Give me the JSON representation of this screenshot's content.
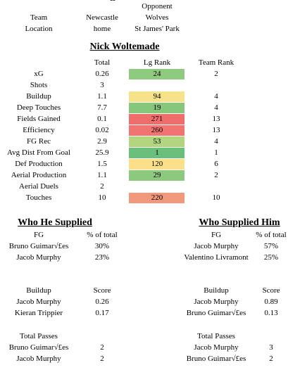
{
  "header": {
    "dash": "--",
    "opponent_label": "Opponent",
    "rows": [
      {
        "label": "Team",
        "home": "Newcastle",
        "away": "Wolves"
      },
      {
        "label": "Location",
        "home": "home",
        "away": "St James' Park"
      }
    ]
  },
  "player": {
    "name": "Nick Woltemade",
    "columns": [
      "Total",
      "Lg Rank",
      "Team Rank"
    ],
    "rows": [
      {
        "metric": "xG",
        "total": "0.26",
        "lg_rank": {
          "value": "24",
          "color": "#8dca7e"
        },
        "team_rank": "2"
      },
      {
        "metric": "Shots",
        "total": "3"
      },
      {
        "metric": "Buildup",
        "total": "1.1",
        "lg_rank": {
          "value": "94",
          "color": "#f6e389"
        },
        "team_rank": "4"
      },
      {
        "metric": "Deep Touches",
        "total": "7.7",
        "lg_rank": {
          "value": "19",
          "color": "#86c77c"
        },
        "team_rank": "4"
      },
      {
        "metric": "Fields Gained",
        "total": "0.1",
        "lg_rank": {
          "value": "271",
          "color": "#ef6e6b"
        },
        "team_rank": "13"
      },
      {
        "metric": "Efficiency",
        "total": "0.02",
        "lg_rank": {
          "value": "260",
          "color": "#f0746f"
        },
        "team_rank": "13"
      },
      {
        "metric": "FG Rec",
        "total": "2.9",
        "lg_rank": {
          "value": "53",
          "color": "#b3d57f"
        },
        "team_rank": "4"
      },
      {
        "metric": "Avg Dist From Goal",
        "total": "25.9",
        "lg_rank": {
          "value": "1",
          "color": "#69bf7b"
        },
        "team_rank": "1"
      },
      {
        "metric": "Def Production",
        "total": "1.5",
        "lg_rank": {
          "value": "120",
          "color": "#fcdf89"
        },
        "team_rank": "6"
      },
      {
        "metric": "Aerial Production",
        "total": "1.1",
        "lg_rank": {
          "value": "29",
          "color": "#8cc97e"
        },
        "team_rank": "2"
      },
      {
        "metric": "Aerial Duels",
        "total": "2"
      },
      {
        "metric": "Touches",
        "total": "10",
        "lg_rank": {
          "value": "220",
          "color": "#f0987b"
        },
        "team_rank": "10"
      }
    ]
  },
  "sections": [
    {
      "title": "Who He Supplied",
      "tables": [
        {
          "columns": [
            "FG",
            "% of total"
          ],
          "rows": [
            [
              "Bruno Guimar√£es",
              "30%"
            ],
            [
              "Jacob Murphy",
              "23%"
            ]
          ]
        },
        {
          "columns": [
            "Buildup",
            "Score"
          ],
          "rows": [
            [
              "Jacob Murphy",
              "0.26"
            ],
            [
              "Kieran Trippier",
              "0.17"
            ]
          ]
        },
        {
          "columns": [
            "Total Passes"
          ],
          "rows": [
            [
              "Bruno Guimar√£es",
              "2"
            ],
            [
              "Jacob Murphy",
              "2"
            ]
          ]
        }
      ]
    },
    {
      "title": "Who Supplied Him",
      "tables": [
        {
          "columns": [
            "FG",
            "% of total"
          ],
          "rows": [
            [
              "Jacob Murphy",
              "57%"
            ],
            [
              "Valentino Livramont",
              "25%"
            ]
          ]
        },
        {
          "columns": [
            "Buildup",
            "Score"
          ],
          "rows": [
            [
              "Jacob Murphy",
              "0.89"
            ],
            [
              "Bruno Guimar√£es",
              "0.13"
            ]
          ]
        },
        {
          "columns": [
            "Total Passes"
          ],
          "rows": [
            [
              "Jacob Murphy",
              "3"
            ],
            [
              "Bruno Guimar√£es",
              "2"
            ]
          ]
        }
      ]
    }
  ]
}
